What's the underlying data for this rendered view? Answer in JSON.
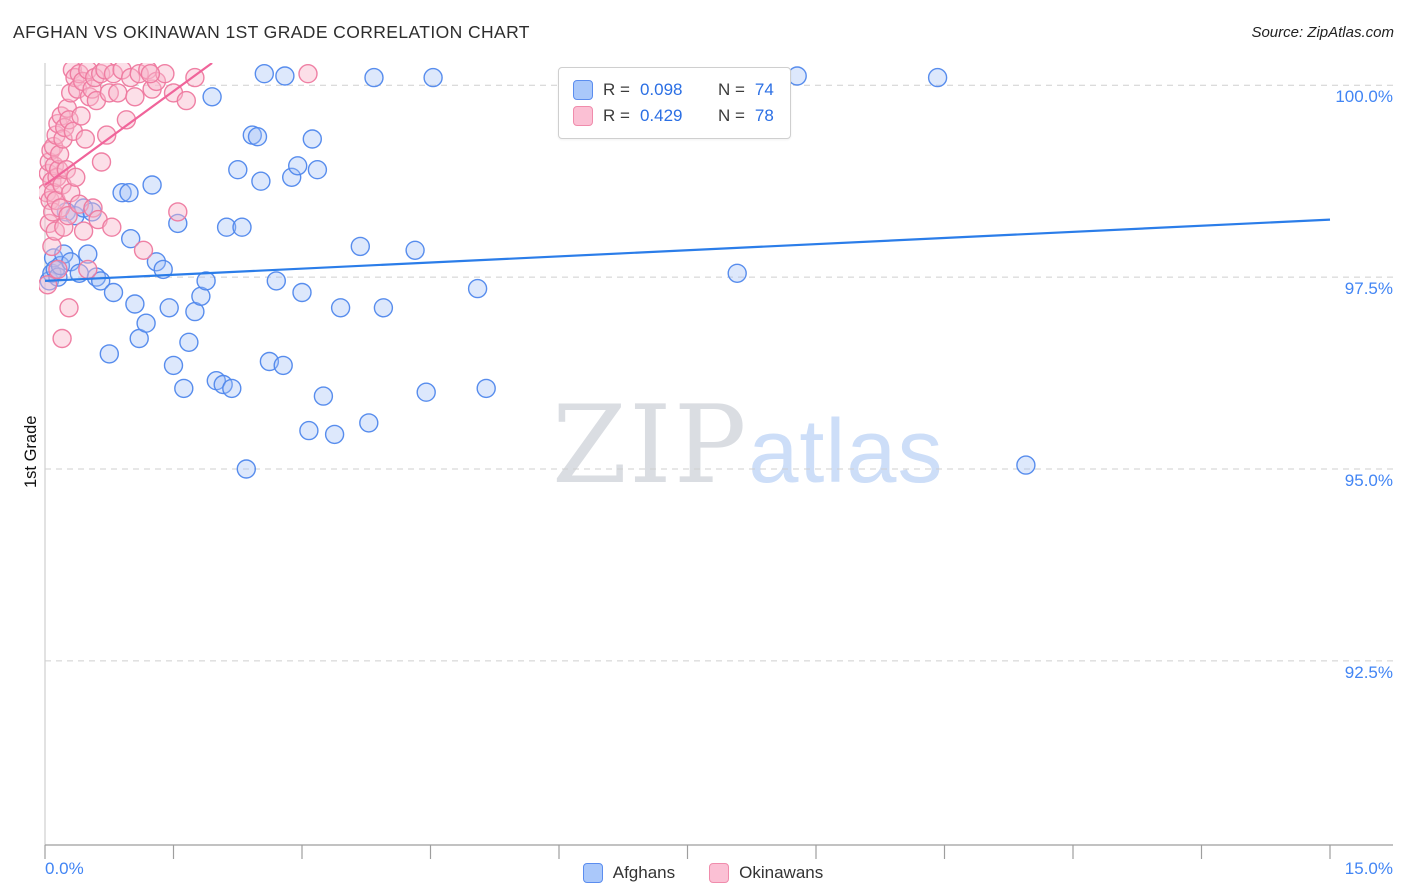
{
  "header": {
    "title": "AFGHAN VS OKINAWAN 1ST GRADE CORRELATION CHART",
    "source": "Source: ZipAtlas.com"
  },
  "axes": {
    "y_label": "1st Grade",
    "y_ticks": [
      {
        "label": "100.0%",
        "value": 100.0
      },
      {
        "label": "97.5%",
        "value": 97.5
      },
      {
        "label": "95.0%",
        "value": 95.0
      },
      {
        "label": "92.5%",
        "value": 92.5
      }
    ],
    "x_left_label": "0.0%",
    "x_right_label": "15.0%"
  },
  "legend_box": {
    "rows": [
      {
        "r_label": "R =",
        "r_value": "0.098",
        "n_label": "N =",
        "n_value": "74"
      },
      {
        "r_label": "R =",
        "r_value": "0.429",
        "n_label": "N =",
        "n_value": "78"
      }
    ]
  },
  "bottom_legend": [
    {
      "label": "Afghans"
    },
    {
      "label": "Okinawans"
    }
  ],
  "watermark": {
    "part1": "ZIP",
    "part2": "atlas"
  },
  "colors": {
    "accent_blue": "#4285f4",
    "afghans_stroke": "#4f87ec",
    "afghans_fill": "#9dbdf7",
    "okinawans_stroke": "#ee799f",
    "okinawans_fill": "#f9b7cc",
    "gridline": "#cfcfcf"
  },
  "chart_data": {
    "type": "scatter",
    "title": "AFGHAN VS OKINAWAN 1ST GRADE CORRELATION CHART",
    "xlabel": "",
    "ylabel": "1st Grade",
    "x_unit": "%",
    "y_unit": "%",
    "xlim": [
      0,
      15
    ],
    "ylim": [
      90.1,
      100.29
    ],
    "grid": "dashed-horizontal",
    "legend_position": "bottom-center",
    "gridlines": {
      "y_values": [
        100.0,
        97.5,
        95.0,
        92.5
      ]
    },
    "series": [
      {
        "name": "Afghans",
        "R": 0.098,
        "N": 74,
        "color": "#4f87ec",
        "fill": "#9dbdf7",
        "points": [
          [
            0.05,
            97.45
          ],
          [
            0.08,
            97.55
          ],
          [
            0.1,
            97.75
          ],
          [
            0.12,
            97.6
          ],
          [
            0.15,
            97.5
          ],
          [
            0.18,
            97.65
          ],
          [
            0.22,
            97.8
          ],
          [
            0.25,
            98.35
          ],
          [
            0.3,
            97.7
          ],
          [
            0.35,
            98.3
          ],
          [
            0.4,
            97.55
          ],
          [
            0.45,
            98.4
          ],
          [
            0.5,
            97.8
          ],
          [
            0.55,
            98.35
          ],
          [
            0.6,
            97.5
          ],
          [
            0.65,
            97.45
          ],
          [
            0.75,
            96.5
          ],
          [
            0.8,
            97.3
          ],
          [
            0.9,
            98.6
          ],
          [
            0.98,
            98.6
          ],
          [
            1.0,
            98.0
          ],
          [
            1.05,
            97.15
          ],
          [
            1.1,
            96.7
          ],
          [
            1.18,
            96.9
          ],
          [
            1.25,
            98.7
          ],
          [
            1.3,
            97.7
          ],
          [
            1.38,
            97.6
          ],
          [
            1.45,
            97.1
          ],
          [
            1.5,
            96.35
          ],
          [
            1.55,
            98.2
          ],
          [
            1.62,
            96.05
          ],
          [
            1.68,
            96.65
          ],
          [
            1.75,
            97.05
          ],
          [
            1.82,
            97.25
          ],
          [
            1.88,
            97.45
          ],
          [
            1.95,
            99.85
          ],
          [
            2.0,
            96.15
          ],
          [
            2.08,
            96.1
          ],
          [
            2.12,
            98.15
          ],
          [
            2.18,
            96.05
          ],
          [
            2.25,
            98.9
          ],
          [
            2.3,
            98.15
          ],
          [
            2.35,
            95.0
          ],
          [
            2.42,
            99.35
          ],
          [
            2.48,
            99.33
          ],
          [
            2.52,
            98.75
          ],
          [
            2.56,
            100.15
          ],
          [
            2.62,
            96.4
          ],
          [
            2.7,
            97.45
          ],
          [
            2.78,
            96.35
          ],
          [
            2.8,
            100.12
          ],
          [
            2.88,
            98.8
          ],
          [
            2.95,
            98.95
          ],
          [
            3.0,
            97.3
          ],
          [
            3.08,
            95.5
          ],
          [
            3.12,
            99.3
          ],
          [
            3.18,
            98.9
          ],
          [
            3.25,
            95.95
          ],
          [
            3.38,
            95.45
          ],
          [
            3.45,
            97.1
          ],
          [
            3.84,
            100.1
          ],
          [
            3.68,
            97.9
          ],
          [
            3.78,
            95.6
          ],
          [
            3.95,
            97.1
          ],
          [
            4.53,
            100.1
          ],
          [
            4.32,
            97.85
          ],
          [
            4.45,
            96.0
          ],
          [
            5.05,
            97.35
          ],
          [
            5.15,
            96.05
          ],
          [
            6.83,
            100.1
          ],
          [
            8.08,
            97.55
          ],
          [
            8.78,
            100.12
          ],
          [
            10.42,
            100.1
          ],
          [
            11.45,
            95.05
          ]
        ]
      },
      {
        "name": "Okinawans",
        "R": 0.429,
        "N": 78,
        "color": "#ee799f",
        "fill": "#f9b7cc",
        "points": [
          [
            0.02,
            98.6
          ],
          [
            0.03,
            97.4
          ],
          [
            0.04,
            98.85
          ],
          [
            0.05,
            99.0
          ],
          [
            0.05,
            98.2
          ],
          [
            0.06,
            98.5
          ],
          [
            0.07,
            99.15
          ],
          [
            0.08,
            98.75
          ],
          [
            0.08,
            97.9
          ],
          [
            0.09,
            98.35
          ],
          [
            0.1,
            99.2
          ],
          [
            0.1,
            98.6
          ],
          [
            0.11,
            98.95
          ],
          [
            0.12,
            98.1
          ],
          [
            0.13,
            99.35
          ],
          [
            0.13,
            98.5
          ],
          [
            0.14,
            98.8
          ],
          [
            0.15,
            99.5
          ],
          [
            0.15,
            97.6
          ],
          [
            0.16,
            98.9
          ],
          [
            0.17,
            99.1
          ],
          [
            0.18,
            98.4
          ],
          [
            0.19,
            99.6
          ],
          [
            0.2,
            98.7
          ],
          [
            0.21,
            99.3
          ],
          [
            0.22,
            98.15
          ],
          [
            0.23,
            99.45
          ],
          [
            0.25,
            98.9
          ],
          [
            0.26,
            99.7
          ],
          [
            0.27,
            98.3
          ],
          [
            0.28,
            99.55
          ],
          [
            0.3,
            99.9
          ],
          [
            0.3,
            98.6
          ],
          [
            0.32,
            100.2
          ],
          [
            0.33,
            99.4
          ],
          [
            0.35,
            100.1
          ],
          [
            0.36,
            98.8
          ],
          [
            0.38,
            99.95
          ],
          [
            0.4,
            100.15
          ],
          [
            0.4,
            98.45
          ],
          [
            0.42,
            99.6
          ],
          [
            0.44,
            100.05
          ],
          [
            0.45,
            98.1
          ],
          [
            0.47,
            99.3
          ],
          [
            0.5,
            100.2
          ],
          [
            0.5,
            97.6
          ],
          [
            0.52,
            99.85
          ],
          [
            0.55,
            99.95
          ],
          [
            0.56,
            98.4
          ],
          [
            0.58,
            100.1
          ],
          [
            0.6,
            99.8
          ],
          [
            0.62,
            98.25
          ],
          [
            0.65,
            100.15
          ],
          [
            0.66,
            99.0
          ],
          [
            0.7,
            100.2
          ],
          [
            0.72,
            99.35
          ],
          [
            0.75,
            99.9
          ],
          [
            0.78,
            98.15
          ],
          [
            0.8,
            100.15
          ],
          [
            0.85,
            99.9
          ],
          [
            0.9,
            100.2
          ],
          [
            0.95,
            99.55
          ],
          [
            1.0,
            100.1
          ],
          [
            1.05,
            99.85
          ],
          [
            1.1,
            100.15
          ],
          [
            1.15,
            97.85
          ],
          [
            1.2,
            100.2
          ],
          [
            1.25,
            99.95
          ],
          [
            1.3,
            100.05
          ],
          [
            1.4,
            100.15
          ],
          [
            1.5,
            99.9
          ],
          [
            1.55,
            98.35
          ],
          [
            1.65,
            99.8
          ],
          [
            1.75,
            100.1
          ],
          [
            0.2,
            96.7
          ],
          [
            0.28,
            97.1
          ],
          [
            1.23,
            100.15
          ],
          [
            3.07,
            100.15
          ]
        ]
      }
    ],
    "trend_lines": [
      {
        "series": "Afghans",
        "color": "#2b7de9",
        "x1": 0,
        "y1": 97.45,
        "x2": 15,
        "y2": 98.25
      },
      {
        "series": "Okinawans",
        "color": "#f0649a",
        "x1": 0,
        "y1": 98.7,
        "x2": 1.95,
        "y2": 100.29
      }
    ]
  }
}
